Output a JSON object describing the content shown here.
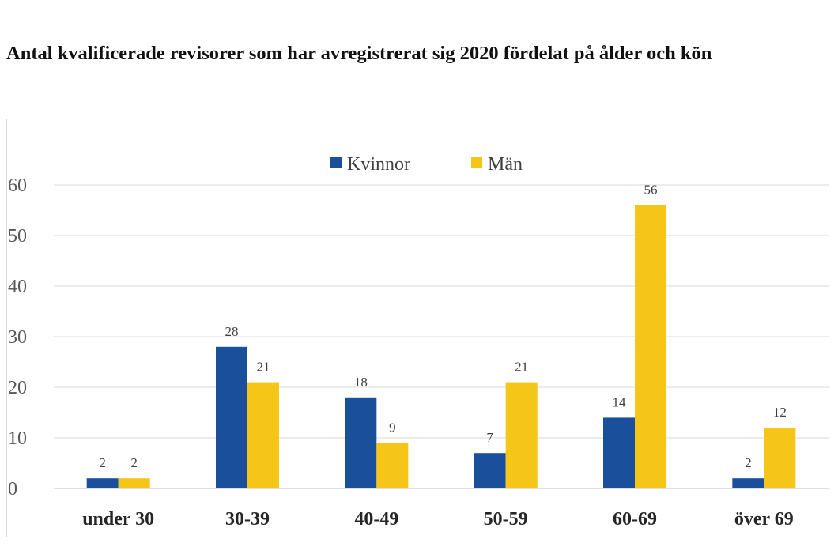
{
  "title": "Antal kvalificerade revisorer som har avregistrerat sig 2020 fördelat på ålder och kön",
  "chart_data": {
    "type": "bar",
    "title": "Antal kvalificerade revisorer som har avregistrerat sig 2020 fördelat på ålder och kön",
    "xlabel": "",
    "ylabel": "",
    "categories": [
      "under 30",
      "30-39",
      "40-49",
      "50-59",
      "60-69",
      "över 69"
    ],
    "series": [
      {
        "name": "Kvinnor",
        "color": "#1a4f9c",
        "values": [
          2,
          28,
          18,
          7,
          14,
          2
        ]
      },
      {
        "name": "Män",
        "color": "#f5c518",
        "values": [
          2,
          21,
          9,
          21,
          56,
          12
        ]
      }
    ],
    "ylim": [
      0,
      60
    ],
    "yticks": [
      0,
      10,
      20,
      30,
      40,
      50,
      60
    ],
    "grid": true,
    "legend": "top-center",
    "data_labels": true
  }
}
